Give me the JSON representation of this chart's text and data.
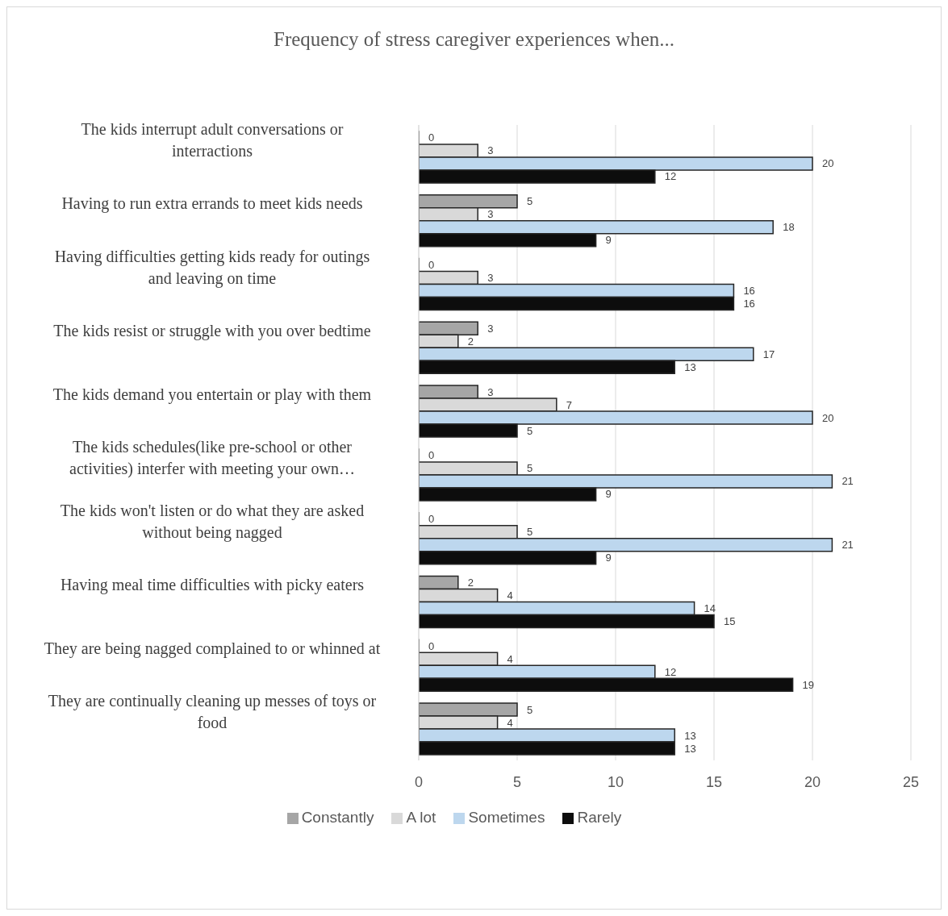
{
  "chart_data": {
    "type": "bar",
    "orientation": "horizontal",
    "title": "Frequency of stress caregiver experiences when...",
    "categories": [
      "The kids interrupt adult conversations or interractions",
      "Having to run extra errands to meet kids needs",
      "Having difficulties getting kids ready for outings and leaving on time",
      "The kids resist or struggle with you over bedtime",
      "The kids demand you entertain or play with them",
      "The kids schedules(like pre-school or other activities) interfer with meeting your own…",
      "The kids won't listen or do what they are asked without being nagged",
      "Having meal time difficulties with picky eaters",
      "They are being nagged complained to or whinned at",
      "They are continually cleaning up messes of toys or food"
    ],
    "series": [
      {
        "name": "Constantly",
        "color": "#a6a6a6",
        "values": [
          0,
          5,
          0,
          3,
          3,
          0,
          0,
          2,
          0,
          5
        ]
      },
      {
        "name": "A lot",
        "color": "#d9d9d9",
        "values": [
          3,
          3,
          3,
          2,
          7,
          5,
          5,
          4,
          4,
          4
        ]
      },
      {
        "name": "Sometimes",
        "color": "#bdd7ee",
        "values": [
          20,
          18,
          16,
          17,
          20,
          21,
          21,
          14,
          12,
          13
        ]
      },
      {
        "name": "Rarely",
        "color": "#0d0d0d",
        "values": [
          12,
          9,
          16,
          13,
          5,
          9,
          9,
          15,
          19,
          13
        ]
      }
    ],
    "xlim": [
      0,
      25
    ],
    "xticks": [
      0,
      5,
      10,
      15,
      20,
      25
    ],
    "grid": "x",
    "legend": "bottom",
    "data_labels": true
  }
}
